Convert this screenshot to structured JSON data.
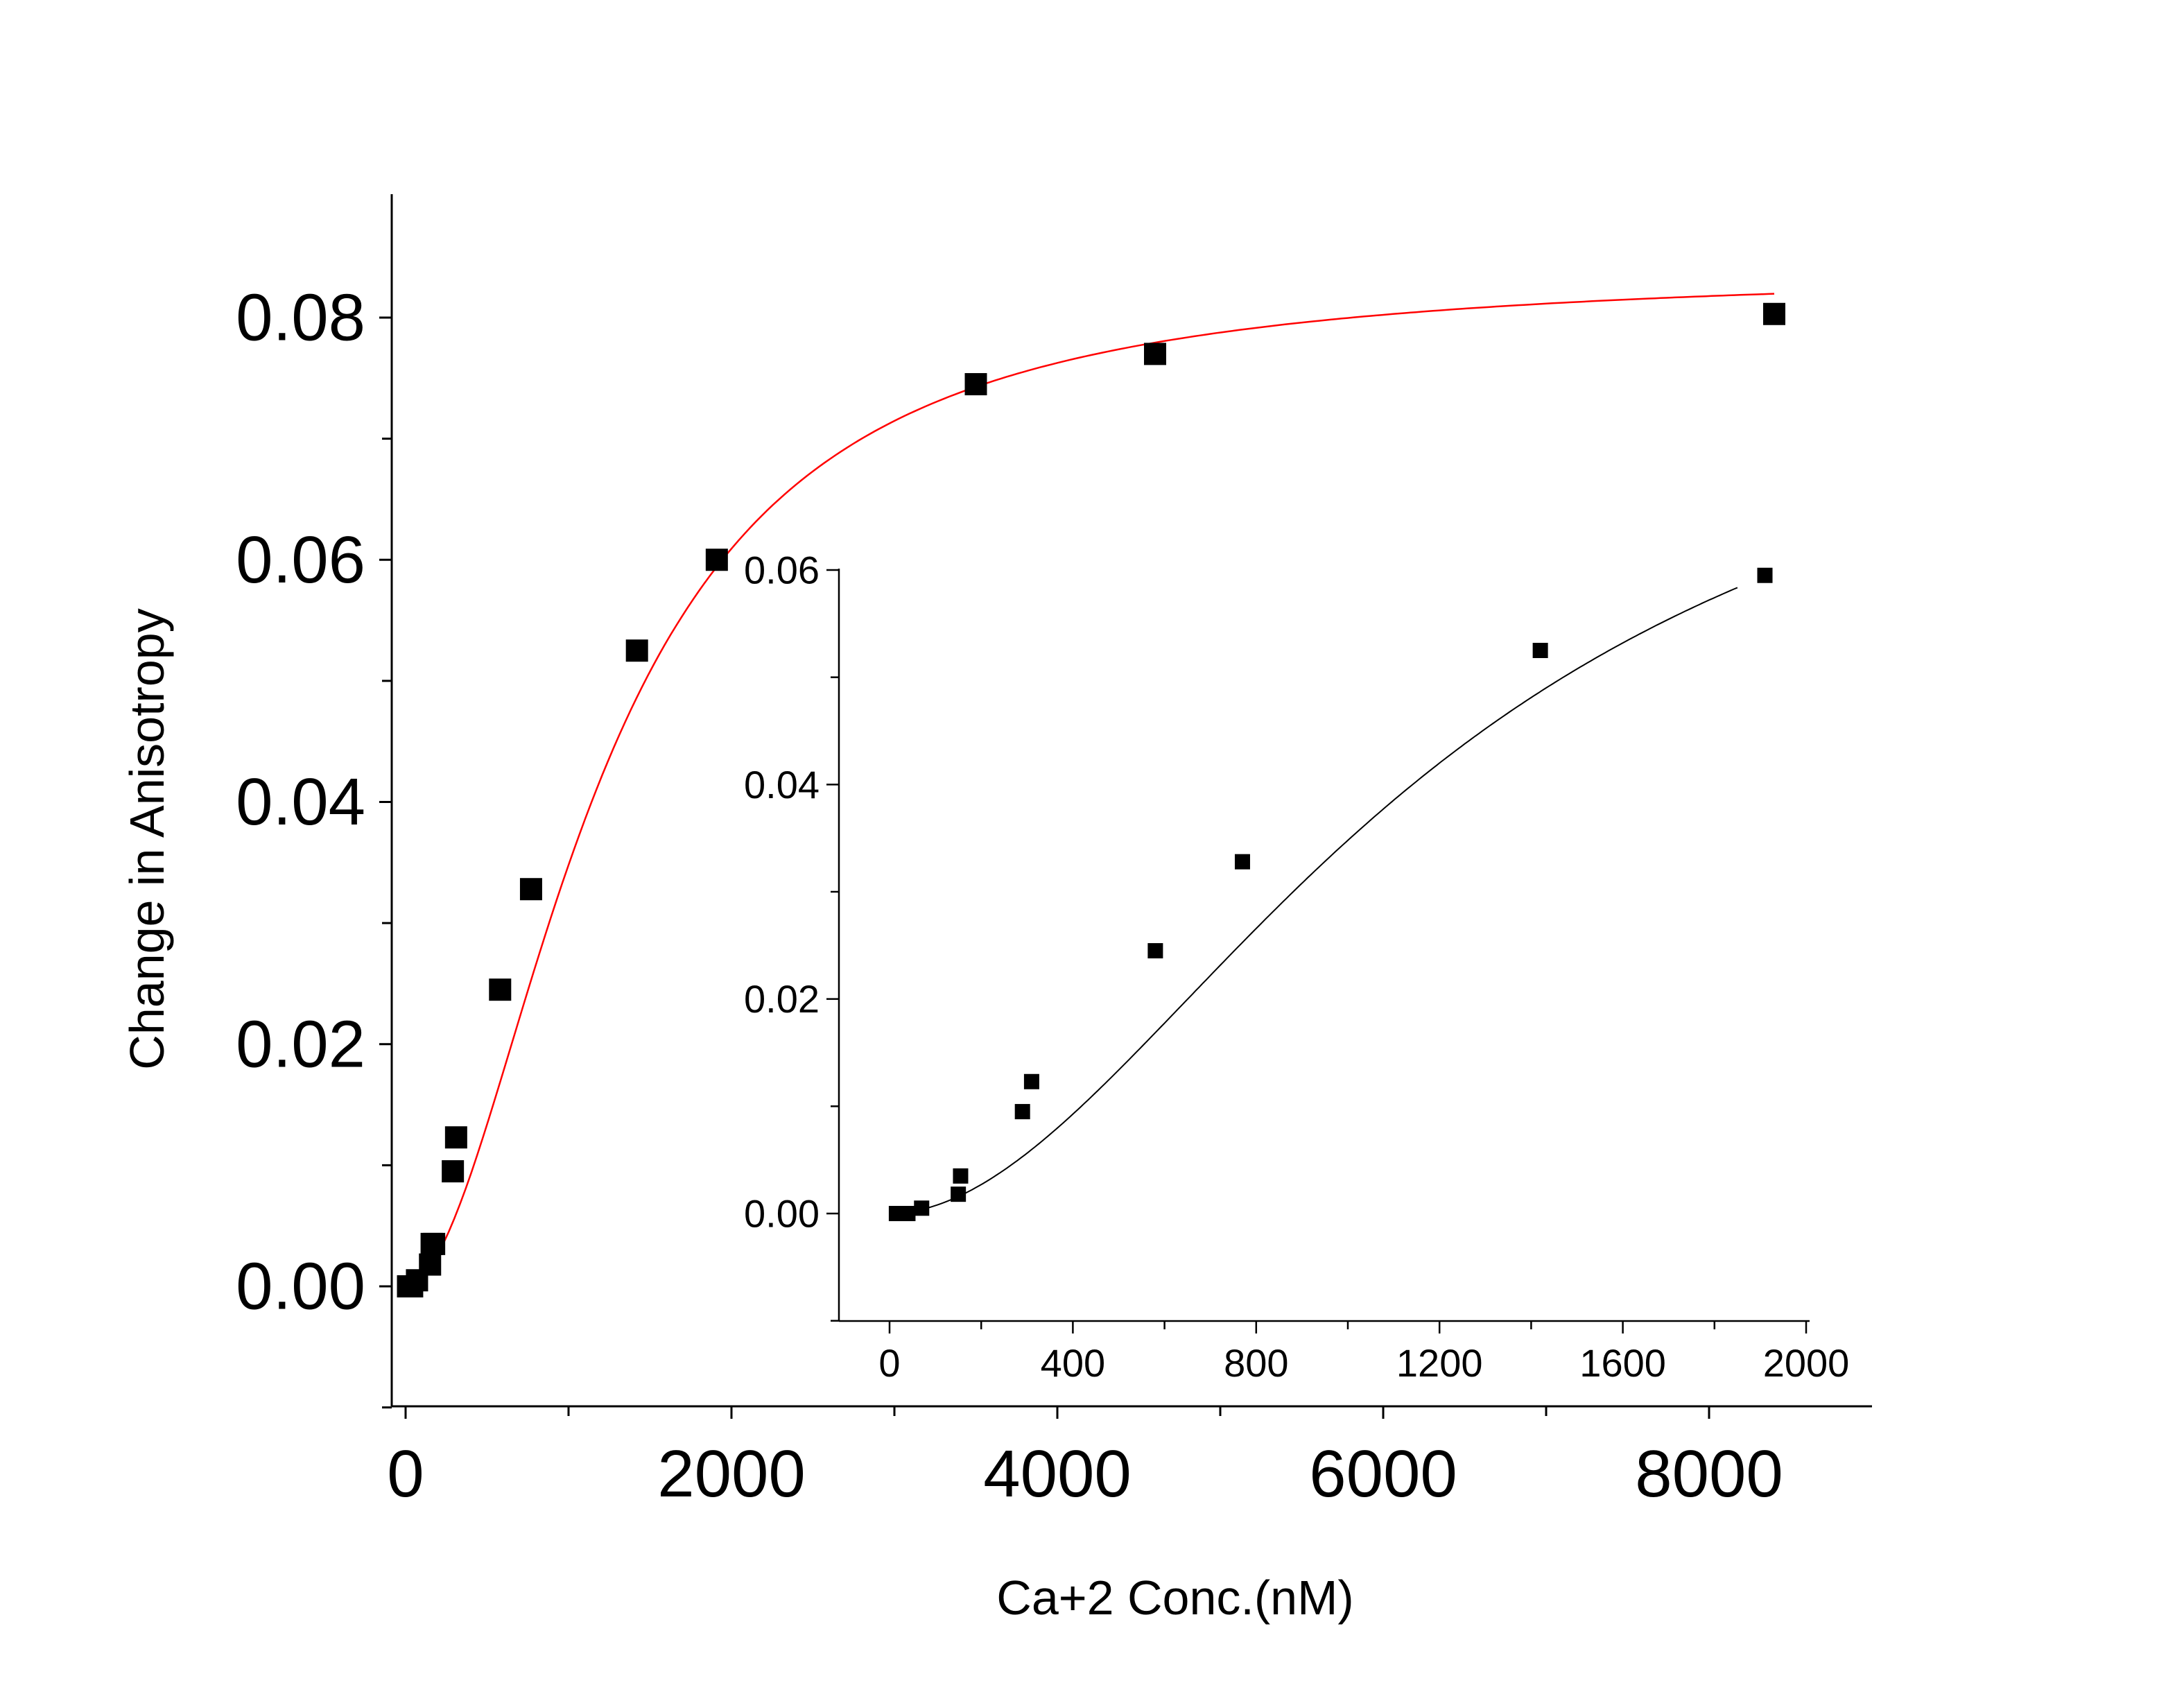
{
  "chart_data": [
    {
      "panel": "main",
      "type": "scatter",
      "xlabel": "Ca+2 Conc.(nM)",
      "ylabel": "Change in Anisotropy",
      "xlim": [
        -100,
        9100
      ],
      "ylim": [
        -0.01,
        0.09
      ],
      "x_ticks": [
        0,
        2000,
        4000,
        6000,
        8000
      ],
      "x_tick_labels": [
        "0",
        "2000",
        "4000",
        "6000",
        "8000"
      ],
      "x_minor_ticks": [
        1000,
        3000,
        5000,
        7000
      ],
      "y_ticks": [
        0.0,
        0.02,
        0.04,
        0.06,
        0.08
      ],
      "y_tick_labels": [
        "0.00",
        "0.02",
        "0.04",
        "0.06",
        "0.08"
      ],
      "y_minor_ticks": [
        -0.01,
        0.01,
        0.03,
        0.05,
        0.07
      ],
      "grid": false,
      "series": [
        {
          "kind": "points",
          "marker": "square",
          "color": "#000000",
          "x": [
            15,
            40,
            70,
            150,
            160,
            175,
            290,
            310,
            580,
            770,
            1420,
            1910,
            3500,
            4600,
            8400
          ],
          "y": [
            0.0,
            0.0,
            0.0005,
            0.0018,
            0.0035,
            0.0035,
            0.0095,
            0.0123,
            0.0245,
            0.0328,
            0.0525,
            0.06,
            0.0745,
            0.077,
            0.0803
          ]
        },
        {
          "kind": "fit",
          "color": "#ff0000",
          "model": "Hill",
          "vmax": 0.084,
          "k": 1200,
          "n": 1.9,
          "x_range": [
            20,
            8400
          ]
        }
      ]
    },
    {
      "panel": "inset",
      "type": "scatter",
      "xlim": [
        -100,
        2000
      ],
      "ylim": [
        -0.01,
        0.06
      ],
      "x_ticks": [
        0,
        400,
        800,
        1200,
        1600,
        2000
      ],
      "x_tick_labels": [
        "0",
        "400",
        "800",
        "1200",
        "1600",
        "2000"
      ],
      "x_minor_ticks": [
        200,
        600,
        1000,
        1400,
        1800
      ],
      "y_ticks": [
        0.0,
        0.02,
        0.04,
        0.06
      ],
      "y_tick_labels": [
        "0.00",
        "0.02",
        "0.04",
        "0.06"
      ],
      "y_minor_ticks": [
        -0.01,
        0.01,
        0.03,
        0.05
      ],
      "grid": false,
      "series": [
        {
          "kind": "points",
          "marker": "square",
          "color": "#000000",
          "x": [
            15,
            40,
            70,
            150,
            155,
            290,
            310,
            580,
            770,
            1420,
            1910
          ],
          "y": [
            0.0,
            0.0,
            0.0005,
            0.0018,
            0.0035,
            0.0095,
            0.0123,
            0.0245,
            0.0328,
            0.0525,
            0.0595
          ]
        },
        {
          "kind": "fit",
          "color": "#000000",
          "model": "Hill",
          "vmax": 0.084,
          "k": 1200,
          "n": 1.9,
          "x_range": [
            20,
            1850
          ]
        }
      ]
    }
  ]
}
